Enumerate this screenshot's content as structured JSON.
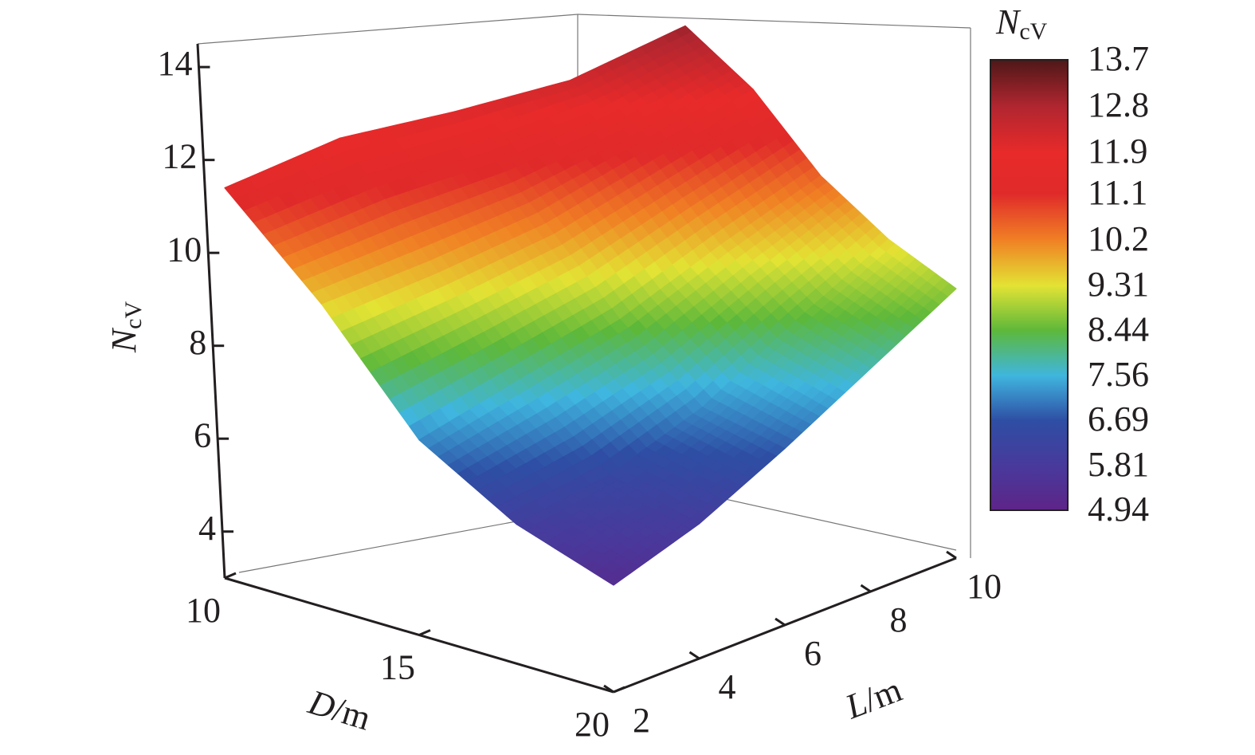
{
  "chart_data": {
    "type": "surface",
    "xlabel": {
      "main": "D",
      "unit": "/m"
    },
    "ylabel": {
      "main": "L",
      "unit": "/m"
    },
    "zlabel": {
      "main": "N",
      "sub": "cV"
    },
    "x": [
      10,
      12.5,
      15,
      17.5,
      20
    ],
    "y": [
      2,
      4,
      6,
      8,
      10
    ],
    "z": [
      [
        11.4,
        12.0,
        12.1,
        12.3,
        13.0
      ],
      [
        9.5,
        9.9,
        10.4,
        11.2,
        12.0
      ],
      [
        7.2,
        7.9,
        8.6,
        9.6,
        10.5
      ],
      [
        6.0,
        6.4,
        7.2,
        8.4,
        9.5
      ],
      [
        5.3,
        5.9,
        6.8,
        7.8,
        8.8
      ]
    ],
    "xlim": [
      10,
      20
    ],
    "xticks": [
      10,
      15,
      20
    ],
    "ylim": [
      2,
      10
    ],
    "yticks": [
      2,
      4,
      6,
      8,
      10
    ],
    "zlim": [
      3,
      14.5
    ],
    "zticks": [
      4,
      6,
      8,
      10,
      12,
      14
    ],
    "colorbar": {
      "title": {
        "main": "N",
        "sub": "cV"
      },
      "ticks": [
        4.94,
        5.81,
        6.69,
        7.56,
        8.44,
        9.31,
        10.2,
        11.1,
        11.9,
        12.8,
        13.7
      ],
      "colors": [
        "#5e2488",
        "#483a9c",
        "#2e4ea4",
        "#3fb6df",
        "#5db83a",
        "#e3e334",
        "#f08024",
        "#e02a2a",
        "#e82a2a",
        "#b02630",
        "#4e1818"
      ]
    }
  }
}
